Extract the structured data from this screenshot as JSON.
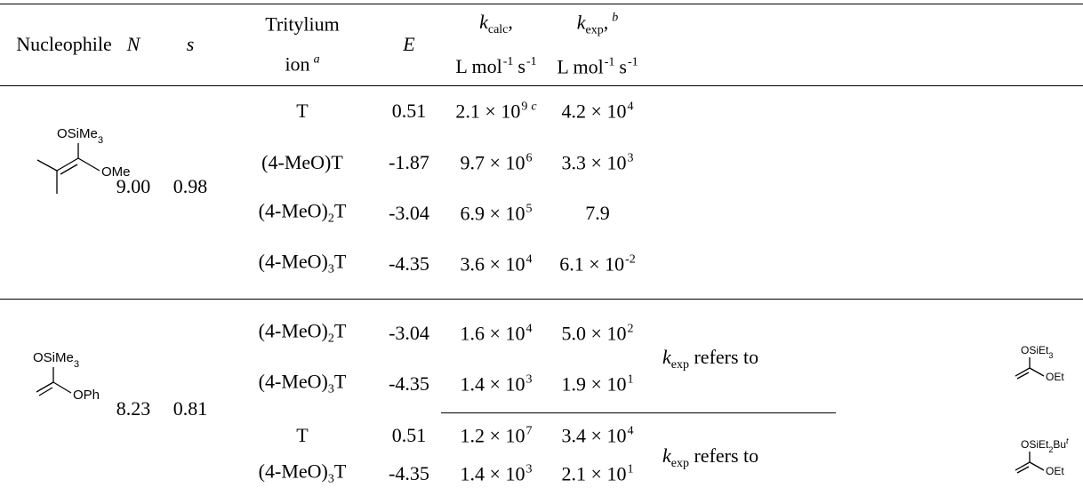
{
  "table": {
    "header": [
      [
        [
          {
            "t": "Nucleophile"
          }
        ]
      ],
      [
        [
          {
            "t": "N",
            "s": "i"
          }
        ]
      ],
      [
        [
          {
            "t": "s",
            "s": "i"
          }
        ]
      ],
      [
        [
          {
            "t": "Tritylium"
          }
        ],
        [
          {
            "t": "ion"
          },
          {
            "t": "a",
            "s": "sup-i"
          }
        ]
      ],
      [
        [
          {
            "t": "E",
            "s": "i"
          }
        ]
      ],
      [
        [
          {
            "t": "k",
            "s": "i"
          },
          {
            "t": "calc",
            "s": "sub"
          },
          {
            "t": ","
          }
        ],
        [
          {
            "t": "L mol"
          },
          {
            "t": "-1",
            "s": "sup"
          },
          {
            "t": "s"
          },
          {
            "t": "-1",
            "s": "sup"
          }
        ]
      ],
      [
        [
          {
            "t": "k",
            "s": "i"
          },
          {
            "t": "exp",
            "s": "sub"
          },
          {
            "t": ","
          },
          {
            "t": "b",
            "s": "sup-i"
          }
        ],
        [
          {
            "t": "L mol"
          },
          {
            "t": "-1",
            "s": "sup"
          },
          {
            "t": "s"
          },
          {
            "t": "-1",
            "s": "sup"
          }
        ]
      ]
    ],
    "groups": [
      {
        "nucleophile": {
          "labels": [
            [
              {
                "t": "OSiMe"
              },
              {
                "t": "3",
                "s": "sub"
              }
            ],
            [
              {
                "t": "OMe"
              }
            ]
          ]
        },
        "N": "9.00",
        "s": "0.98",
        "rows": [
          {
            "ion": [
              {
                "t": "T"
              }
            ],
            "E": "0.51",
            "k_calc": [
              {
                "t": "2.1 × 10"
              },
              {
                "t": "9",
                "s": "sup"
              },
              {
                "t": "c",
                "s": "sup-i"
              }
            ],
            "k_exp": [
              {
                "t": "4.2 × 10"
              },
              {
                "t": "4",
                "s": "sup"
              }
            ]
          },
          {
            "ion": [
              {
                "t": "(4-MeO)T"
              }
            ],
            "E": "-1.87",
            "k_calc": [
              {
                "t": "9.7 × 10"
              },
              {
                "t": "6",
                "s": "sup"
              }
            ],
            "k_exp": [
              {
                "t": "3.3 × 10"
              },
              {
                "t": "3",
                "s": "sup"
              }
            ]
          },
          {
            "ion": [
              {
                "t": "(4-MeO)"
              },
              {
                "t": "2",
                "s": "sub"
              },
              {
                "t": "T"
              }
            ],
            "E": "-3.04",
            "k_calc": [
              {
                "t": "6.9 × 10"
              },
              {
                "t": "5",
                "s": "sup"
              }
            ],
            "k_exp": [
              {
                "t": "7.9"
              }
            ]
          },
          {
            "ion": [
              {
                "t": "(4-MeO)"
              },
              {
                "t": "3",
                "s": "sub"
              },
              {
                "t": "T"
              }
            ],
            "E": "-4.35",
            "k_calc": [
              {
                "t": "3.6 × 10"
              },
              {
                "t": "4",
                "s": "sup"
              }
            ],
            "k_exp": [
              {
                "t": "6.1 × 10"
              },
              {
                "t": "-2",
                "s": "sup"
              }
            ]
          }
        ]
      },
      {
        "nucleophile": {
          "labels": [
            [
              {
                "t": "OSiMe"
              },
              {
                "t": "3",
                "s": "sub"
              }
            ],
            [
              {
                "t": "OPh"
              }
            ]
          ]
        },
        "N": "8.23",
        "s": "0.81",
        "rows": [
          {
            "ion": [
              {
                "t": "(4-MeO)"
              },
              {
                "t": "2",
                "s": "sub"
              },
              {
                "t": "T"
              }
            ],
            "E": "-3.04",
            "k_calc": [
              {
                "t": "1.6 × 10"
              },
              {
                "t": "4",
                "s": "sup"
              }
            ],
            "k_exp": [
              {
                "t": "5.0 × 10"
              },
              {
                "t": "2",
                "s": "sup"
              }
            ]
          },
          {
            "ion": [
              {
                "t": "(4-MeO)"
              },
              {
                "t": "3",
                "s": "sub"
              },
              {
                "t": "T"
              }
            ],
            "E": "-4.35",
            "k_calc": [
              {
                "t": "1.4 × 10"
              },
              {
                "t": "3",
                "s": "sup"
              }
            ],
            "k_exp": [
              {
                "t": "1.9 × 10"
              },
              {
                "t": "1",
                "s": "sup"
              }
            ]
          },
          {
            "ion": [
              {
                "t": "T"
              }
            ],
            "E": "0.51",
            "k_calc": [
              {
                "t": "1.2 × 10"
              },
              {
                "t": "7",
                "s": "sup"
              }
            ],
            "k_exp": [
              {
                "t": "3.4 × 10"
              },
              {
                "t": "4",
                "s": "sup"
              }
            ]
          },
          {
            "ion": [
              {
                "t": "(4-MeO)"
              },
              {
                "t": "3",
                "s": "sub"
              },
              {
                "t": "T"
              }
            ],
            "E": "-4.35",
            "k_calc": [
              {
                "t": "1.4 × 10"
              },
              {
                "t": "3",
                "s": "sup"
              }
            ],
            "k_exp": [
              {
                "t": "2.1 × 10"
              },
              {
                "t": "1",
                "s": "sup"
              }
            ]
          }
        ]
      }
    ],
    "notes": [
      {
        "text": [
          {
            "t": "k",
            "s": "i"
          },
          {
            "t": "exp",
            "s": "sub"
          },
          {
            "t": " refers to"
          }
        ],
        "structure": {
          "labels": [
            [
              {
                "t": "OSiEt"
              },
              {
                "t": "3",
                "s": "sub"
              }
            ],
            [
              {
                "t": "OEt"
              }
            ]
          ]
        }
      },
      {
        "text": [
          {
            "t": "k",
            "s": "i"
          },
          {
            "t": "exp",
            "s": "sub"
          },
          {
            "t": " refers to"
          }
        ],
        "structure": {
          "labels": [
            [
              {
                "t": "OSiEt"
              },
              {
                "t": "2",
                "s": "sub"
              },
              {
                "t": "Bu"
              },
              {
                "t": "t",
                "s": "sup-i"
              }
            ],
            [
              {
                "t": "OEt"
              }
            ]
          ]
        }
      }
    ]
  }
}
